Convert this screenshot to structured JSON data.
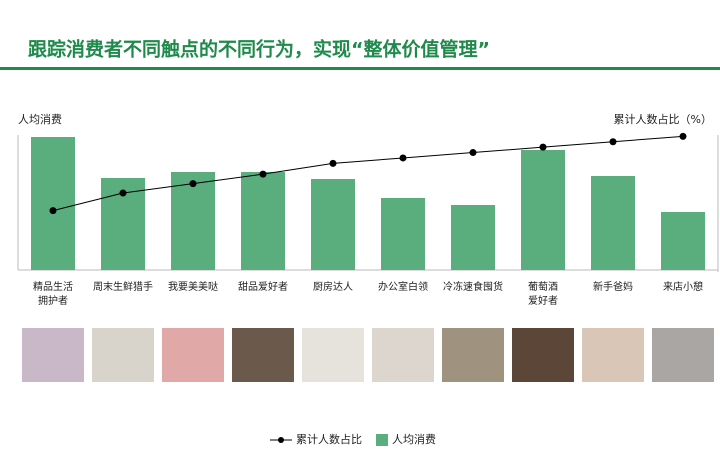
{
  "chart_data": {
    "type": "bar-line",
    "title": "跟踪消费者不同触点的不同行为，实现“整体价值管理”",
    "y_label": "人均消费",
    "y2_label": "累计人数占比（%）",
    "categories": [
      "精品生活\n拥护者",
      "周末生鲜猎手",
      "我要美美哒",
      "甜品爱好者",
      "厨房达人",
      "办公室白领",
      "冷冻速食囤货",
      "葡萄酒\n爱好者",
      "新手爸妈",
      "来店小憩"
    ],
    "series": [
      {
        "name": "人均消费",
        "type": "bar",
        "color": "#5aae7e",
        "values": [
          133,
          92,
          98,
          98,
          91,
          72,
          65,
          120,
          94,
          58
        ]
      },
      {
        "name": "累计人数占比",
        "type": "line",
        "axis": "y2",
        "color": "#000000",
        "values": [
          44,
          57,
          64,
          71,
          79,
          83,
          87,
          91,
          95,
          99
        ]
      }
    ],
    "ylim": [
      0,
      135
    ],
    "y2lim": [
      0,
      100
    ],
    "legend": "bottom"
  }
}
